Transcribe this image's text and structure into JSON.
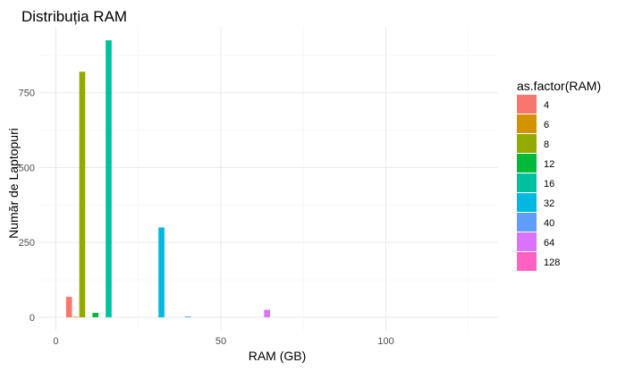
{
  "chart_data": {
    "type": "bar",
    "title": "Distribuția RAM",
    "xlabel": "RAM (GB)",
    "ylabel": "Număr de Laptopuri",
    "xlim": [
      -5,
      134
    ],
    "ylim": [
      -45,
      970
    ],
    "x_ticks": [
      0,
      50,
      100
    ],
    "y_ticks": [
      0,
      250,
      500,
      750
    ],
    "grid": true,
    "legend": {
      "title": "as.factor(RAM)",
      "position": "right"
    },
    "series": [
      {
        "name": "4",
        "x": 4,
        "value": 68,
        "color": "#F8766D"
      },
      {
        "name": "6",
        "x": 6,
        "value": 2,
        "color": "#D39200"
      },
      {
        "name": "8",
        "x": 8,
        "value": 820,
        "color": "#93AA00"
      },
      {
        "name": "12",
        "x": 12,
        "value": 15,
        "color": "#00BA38"
      },
      {
        "name": "16",
        "x": 16,
        "value": 925,
        "color": "#00C19F"
      },
      {
        "name": "32",
        "x": 32,
        "value": 300,
        "color": "#00B9E3"
      },
      {
        "name": "40",
        "x": 40,
        "value": 3,
        "color": "#619CFF"
      },
      {
        "name": "64",
        "x": 64,
        "value": 25,
        "color": "#DB72FB"
      },
      {
        "name": "128",
        "x": 128,
        "value": 0,
        "color": "#FF61C3"
      }
    ]
  }
}
